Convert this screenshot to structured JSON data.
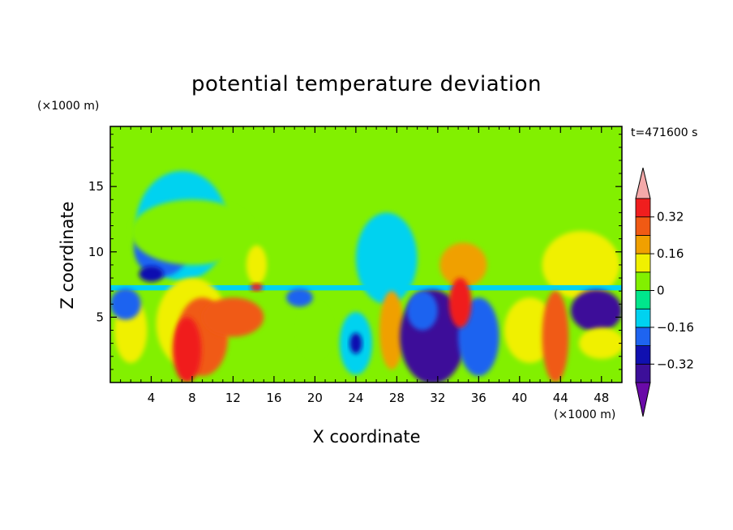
{
  "chart_data": {
    "type": "heatmap",
    "title": "potential temperature deviation",
    "xlabel": "X coordinate",
    "ylabel": "Z coordinate",
    "x_unit": "(×1000 m)",
    "y_unit": "(×1000 m)",
    "time_label": "t=471600 s",
    "xlim": [
      0,
      50
    ],
    "ylim": [
      0,
      19.6
    ],
    "x_ticks": [
      4,
      8,
      12,
      16,
      20,
      24,
      28,
      32,
      36,
      40,
      44,
      48
    ],
    "y_ticks": [
      5,
      10,
      15
    ],
    "colorbar": {
      "tick_labels": [
        "0.32",
        "0.16",
        "0",
        "−0.16",
        "−0.32"
      ],
      "tick_values": [
        0.32,
        0.16,
        0,
        -0.16,
        -0.32
      ],
      "levels": [
        -0.4,
        -0.32,
        -0.24,
        -0.16,
        -0.08,
        0,
        0.08,
        0.16,
        0.24,
        0.32,
        0.4
      ],
      "colors": [
        "#6a0aa8",
        "#3c0f99",
        "#1010b0",
        "#1e64f0",
        "#00d2f0",
        "#00e68c",
        "#82f000",
        "#f0f000",
        "#f0a000",
        "#f05a14",
        "#f01e1e",
        "#f4a9a9"
      ]
    },
    "background_color": "#82f000",
    "features": [
      {
        "kind": "rect",
        "x": [
          0,
          50
        ],
        "z": [
          0,
          7.5
        ],
        "value": 0.06
      },
      {
        "kind": "ellipse",
        "cx": 7,
        "cz": 12,
        "rx": 4.5,
        "rz": 4.2,
        "value": -0.1
      },
      {
        "kind": "ellipse",
        "cx": 5,
        "cz": 10.3,
        "rx": 2.7,
        "rz": 2.2,
        "value": -0.22
      },
      {
        "kind": "ellipse",
        "cx": 4,
        "cz": 8.3,
        "rx": 1.2,
        "rz": 0.6,
        "value": -0.3
      },
      {
        "kind": "ellipse",
        "cx": 8,
        "cz": 11.5,
        "rx": 6,
        "rz": 2.5,
        "value": 0.02
      },
      {
        "kind": "ellipse",
        "cx": 27,
        "cz": 9.5,
        "rx": 3,
        "rz": 3.5,
        "value": -0.12
      },
      {
        "kind": "ellipse",
        "cx": 34.5,
        "cz": 9,
        "rx": 2.3,
        "rz": 1.7,
        "value": 0.2
      },
      {
        "kind": "ellipse",
        "cx": 46,
        "cz": 9,
        "rx": 3.8,
        "rz": 2.6,
        "value": 0.12
      },
      {
        "kind": "ellipse",
        "cx": 14.3,
        "cz": 9,
        "rx": 1,
        "rz": 1.5,
        "value": 0.12
      },
      {
        "kind": "rect",
        "x": [
          0,
          50
        ],
        "z": [
          7.05,
          7.45
        ],
        "value": -0.1
      },
      {
        "kind": "ellipse",
        "cx": 8,
        "cz": 4.5,
        "rx": 3.5,
        "rz": 3.5,
        "value": 0.12
      },
      {
        "kind": "ellipse",
        "cx": 9,
        "cz": 3.5,
        "rx": 2.5,
        "rz": 3,
        "value": 0.26
      },
      {
        "kind": "ellipse",
        "cx": 7.5,
        "cz": 2.5,
        "rx": 1.4,
        "rz": 2.5,
        "value": 0.38
      },
      {
        "kind": "ellipse",
        "cx": 12,
        "cz": 5,
        "rx": 3,
        "rz": 1.5,
        "value": 0.26
      },
      {
        "kind": "ellipse",
        "cx": 2,
        "cz": 4,
        "rx": 1.6,
        "rz": 2.5,
        "value": 0.12
      },
      {
        "kind": "ellipse",
        "cx": 1.5,
        "cz": 6,
        "rx": 1.5,
        "rz": 1.2,
        "value": -0.22
      },
      {
        "kind": "ellipse",
        "cx": 24,
        "cz": 3,
        "rx": 1.6,
        "rz": 2.4,
        "value": -0.1
      },
      {
        "kind": "ellipse",
        "cx": 24,
        "cz": 3,
        "rx": 0.6,
        "rz": 0.8,
        "value": -0.3
      },
      {
        "kind": "ellipse",
        "cx": 20,
        "cz": 4,
        "rx": 1.5,
        "rz": 2,
        "value": 0.02
      },
      {
        "kind": "ellipse",
        "cx": 27.5,
        "cz": 4,
        "rx": 1.2,
        "rz": 3,
        "value": 0.2
      },
      {
        "kind": "ellipse",
        "cx": 31.5,
        "cz": 3.5,
        "rx": 3.2,
        "rz": 3.6,
        "value": -0.35
      },
      {
        "kind": "ellipse",
        "cx": 30.5,
        "cz": 5.5,
        "rx": 1.5,
        "rz": 1.5,
        "value": -0.22
      },
      {
        "kind": "ellipse",
        "cx": 36,
        "cz": 3.5,
        "rx": 2,
        "rz": 3,
        "value": -0.22
      },
      {
        "kind": "ellipse",
        "cx": 34.2,
        "cz": 6.1,
        "rx": 1.1,
        "rz": 1.9,
        "value": 0.38
      },
      {
        "kind": "ellipse",
        "cx": 41,
        "cz": 4,
        "rx": 2.5,
        "rz": 2.5,
        "value": 0.1
      },
      {
        "kind": "ellipse",
        "cx": 43.5,
        "cz": 3.5,
        "rx": 1.3,
        "rz": 3.5,
        "value": 0.26
      },
      {
        "kind": "ellipse",
        "cx": 47.5,
        "cz": 5.5,
        "rx": 2.5,
        "rz": 1.6,
        "value": -0.38
      },
      {
        "kind": "ellipse",
        "cx": 48,
        "cz": 3,
        "rx": 2.2,
        "rz": 1.2,
        "value": 0.12
      },
      {
        "kind": "ellipse",
        "cx": 18.5,
        "cz": 6.5,
        "rx": 1.3,
        "rz": 0.7,
        "value": -0.22
      },
      {
        "kind": "ellipse",
        "cx": 14.3,
        "cz": 7.3,
        "rx": 0.6,
        "rz": 0.3,
        "value": 0.38
      }
    ]
  }
}
